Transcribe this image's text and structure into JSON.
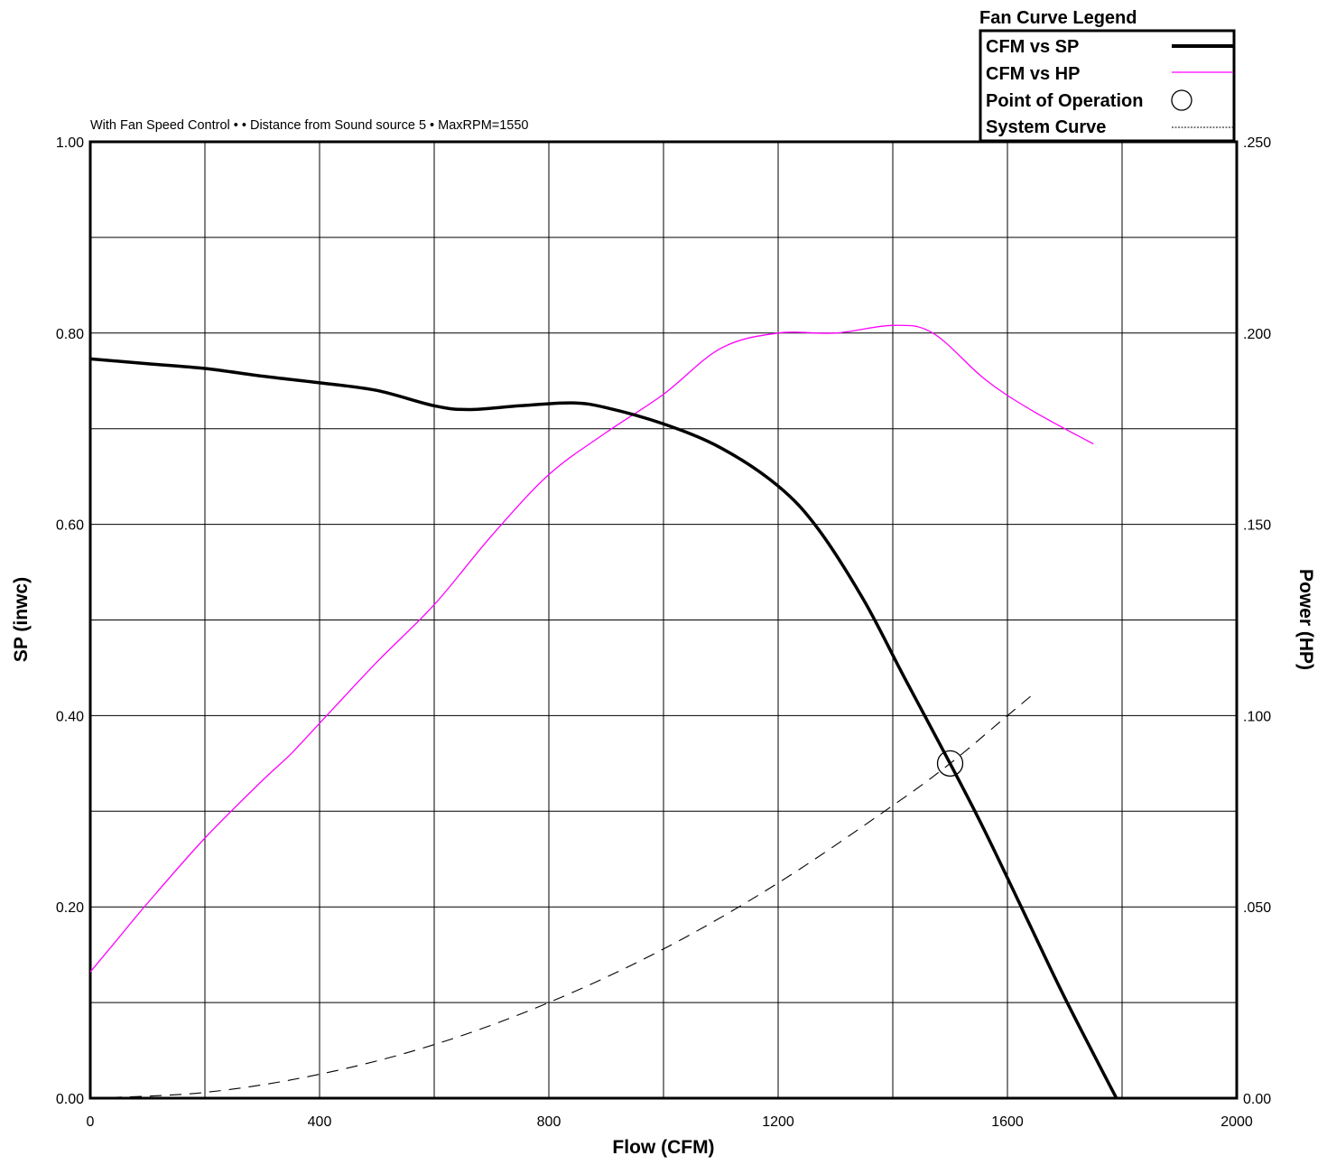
{
  "chart_data": {
    "type": "line",
    "subtitle": "With Fan Speed Control •  • Distance from Sound source 5 • MaxRPM=1550",
    "xlabel": "Flow (CFM)",
    "ylabel": "SP (inwc)",
    "y2label": "Power (HP)",
    "xlim": [
      0,
      2000
    ],
    "ylim": [
      0,
      1.0
    ],
    "y2lim": [
      0,
      0.25
    ],
    "x_ticks": [
      "0",
      "400",
      "800",
      "1200",
      "1600",
      "2000"
    ],
    "x_tick_values": [
      0,
      400,
      800,
      1200,
      1600,
      2000
    ],
    "y_ticks": [
      "0.00",
      "0.20",
      "0.40",
      "0.60",
      "0.80",
      "1.00"
    ],
    "y_tick_values": [
      0,
      0.2,
      0.4,
      0.6,
      0.8,
      1.0
    ],
    "y2_ticks": [
      "0.00",
      ".050",
      ".100",
      ".150",
      ".200",
      ".250"
    ],
    "grid": true,
    "legend": {
      "title": "Fan Curve Legend",
      "placement": "top-right",
      "items": [
        {
          "label": "CFM  vs SP",
          "style": "thick-solid"
        },
        {
          "label": "CFM  vs HP",
          "style": "thin-magenta"
        },
        {
          "label": "Point of Operation",
          "style": "circle"
        },
        {
          "label": "System Curve",
          "style": "dashed"
        }
      ]
    },
    "colors": {
      "sp": "#000000",
      "hp": "#ff00ff",
      "system": "#000000"
    },
    "series": [
      {
        "name": "CFM  vs SP",
        "axis": "left",
        "points": [
          [
            0,
            0.773
          ],
          [
            100,
            0.768
          ],
          [
            200,
            0.763
          ],
          [
            300,
            0.755
          ],
          [
            400,
            0.748
          ],
          [
            500,
            0.74
          ],
          [
            600,
            0.724
          ],
          [
            660,
            0.72
          ],
          [
            750,
            0.724
          ],
          [
            840,
            0.727
          ],
          [
            900,
            0.722
          ],
          [
            1000,
            0.705
          ],
          [
            1100,
            0.68
          ],
          [
            1200,
            0.64
          ],
          [
            1270,
            0.595
          ],
          [
            1350,
            0.52
          ],
          [
            1420,
            0.44
          ],
          [
            1500,
            0.35
          ],
          [
            1560,
            0.28
          ],
          [
            1640,
            0.18
          ],
          [
            1700,
            0.105
          ],
          [
            1790,
            0.0
          ]
        ]
      },
      {
        "name": "CFM  vs HP",
        "axis": "right",
        "points": [
          [
            0,
            0.033
          ],
          [
            50,
            0.042
          ],
          [
            100,
            0.051
          ],
          [
            200,
            0.068
          ],
          [
            300,
            0.083
          ],
          [
            350,
            0.09
          ],
          [
            400,
            0.098
          ],
          [
            500,
            0.114
          ],
          [
            600,
            0.129
          ],
          [
            700,
            0.147
          ],
          [
            800,
            0.163
          ],
          [
            900,
            0.174
          ],
          [
            1000,
            0.184
          ],
          [
            1100,
            0.196
          ],
          [
            1200,
            0.2
          ],
          [
            1300,
            0.2
          ],
          [
            1400,
            0.202
          ],
          [
            1470,
            0.2
          ],
          [
            1560,
            0.188
          ],
          [
            1640,
            0.18
          ],
          [
            1750,
            0.171
          ]
        ]
      },
      {
        "name": "System Curve",
        "axis": "left",
        "points": [
          [
            0,
            0.0
          ],
          [
            200,
            0.006
          ],
          [
            400,
            0.025
          ],
          [
            600,
            0.056
          ],
          [
            800,
            0.1
          ],
          [
            1000,
            0.156
          ],
          [
            1200,
            0.225
          ],
          [
            1400,
            0.306
          ],
          [
            1500,
            0.35
          ],
          [
            1600,
            0.4
          ],
          [
            1650,
            0.425
          ]
        ]
      }
    ],
    "point_of_operation": {
      "x": 1500,
      "y": 0.35
    }
  }
}
